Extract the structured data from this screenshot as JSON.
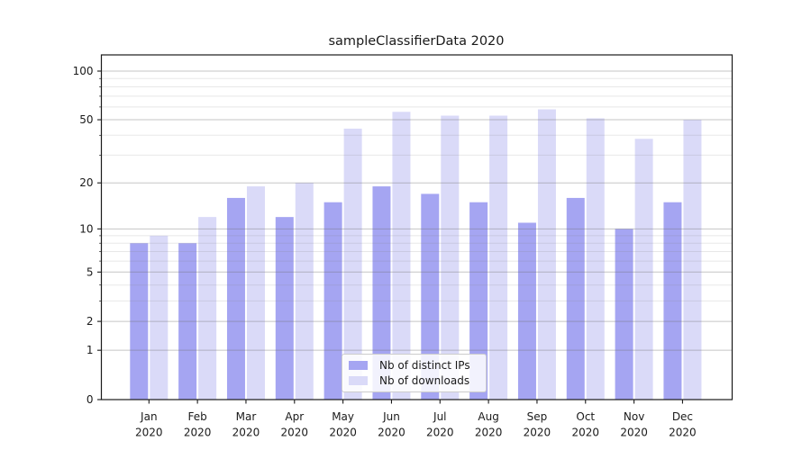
{
  "title": "sampleClassifierData 2020",
  "legend": {
    "items": [
      {
        "label": "Nb of distinct IPs",
        "color": "#a5a5f2"
      },
      {
        "label": "Nb of downloads",
        "color": "#dadaf8"
      }
    ]
  },
  "colors": {
    "bar_distinct_ips": "#a5a5f2",
    "bar_downloads": "#dadaf8",
    "axis": "#1a1a1a",
    "grid_major": "rgba(110,110,110,0.40)",
    "grid_minor": "rgba(130,130,130,0.18)",
    "legend_border": "#cccccc"
  },
  "chart_data": {
    "type": "bar",
    "title": "sampleClassifierData 2020",
    "categories": [
      "Jan 2020",
      "Feb 2020",
      "Mar 2020",
      "Apr 2020",
      "May 2020",
      "Jun 2020",
      "Jul 2020",
      "Aug 2020",
      "Sep 2020",
      "Oct 2020",
      "Nov 2020",
      "Dec 2020"
    ],
    "x_tick_months": [
      "Jan",
      "Feb",
      "Mar",
      "Apr",
      "May",
      "Jun",
      "Jul",
      "Aug",
      "Sep",
      "Oct",
      "Nov",
      "Dec"
    ],
    "x_tick_year": "2020",
    "series": [
      {
        "name": "Nb of distinct IPs",
        "color": "#a5a5f2",
        "values": [
          8,
          8,
          16,
          12,
          15,
          19,
          17,
          15,
          11,
          16,
          10,
          15
        ]
      },
      {
        "name": "Nb of downloads",
        "color": "#dadaf8",
        "values": [
          9,
          12,
          19,
          20,
          44,
          56,
          53,
          53,
          58,
          51,
          38,
          50
        ]
      }
    ],
    "xlabel": "",
    "ylabel": "",
    "yscale": "log1p",
    "y_tick_labels": [
      0,
      1,
      2,
      5,
      10,
      20,
      50,
      100
    ],
    "y_major_gridlines": [
      1,
      2,
      5,
      10,
      20,
      50,
      100
    ],
    "y_minor_gridlines": [
      3,
      4,
      6,
      7,
      8,
      9,
      30,
      40,
      60,
      70,
      80,
      90
    ],
    "ylim": [
      0,
      123
    ],
    "grid": true,
    "legend_position": "lower center"
  }
}
